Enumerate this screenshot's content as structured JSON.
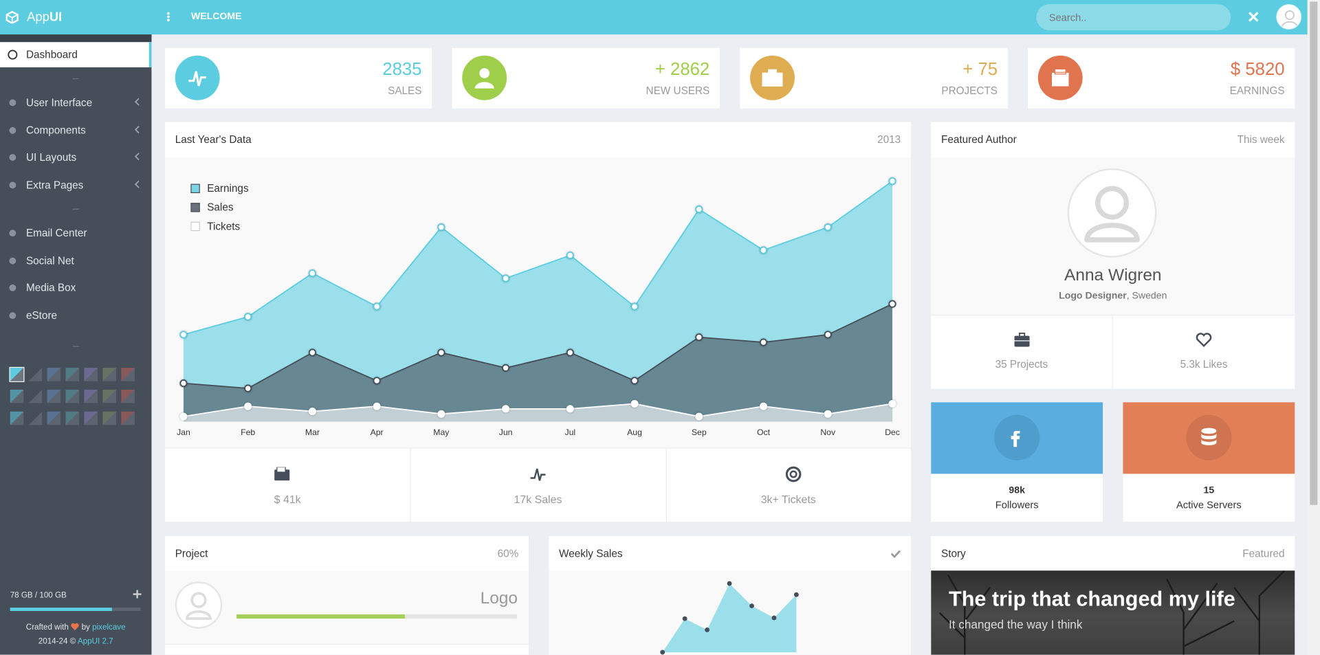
{
  "header": {
    "brand_light": "App",
    "brand_bold": "UI",
    "title": "WELCOME",
    "search": "Search.."
  },
  "sidebar": {
    "items": [
      "Dashboard",
      "User Interface",
      "Components",
      "UI Layouts",
      "Extra Pages",
      "Email Center",
      "Social Net",
      "Media Box",
      "eStore"
    ],
    "storage": {
      "value": 78,
      "label": "78 GB / 100 GB"
    },
    "credit": [
      "Crafted with",
      "by",
      "pixelcave"
    ],
    "copyright": [
      "2014-24 ©",
      "AppUI 2.7"
    ]
  },
  "stats": [
    {
      "value": "2835",
      "label": "SALES",
      "color": "#5ccde0"
    },
    {
      "value": "+ 2862",
      "label": "NEW USERS",
      "color": "#9fcf4a"
    },
    {
      "value": "+ 75",
      "label": "PROJECTS",
      "color": "#dfac52"
    },
    {
      "value": "$ 5820",
      "label": "EARNINGS",
      "color": "#e0744f"
    }
  ],
  "chart_data": [
    {
      "type": "area",
      "title": "Last Year's Data",
      "subtitle": "2013",
      "categories": [
        "Jan",
        "Feb",
        "Mar",
        "Apr",
        "May",
        "Jun",
        "Jul",
        "Aug",
        "Sep",
        "Oct",
        "Nov",
        "Dec"
      ],
      "series": [
        {
          "name": "Earnings",
          "color": "#5ccde0",
          "values": [
            34,
            41,
            58,
            45,
            76,
            56,
            65,
            45,
            83,
            67,
            76,
            94
          ]
        },
        {
          "name": "Sales",
          "color": "#454e59",
          "values": [
            15,
            13,
            27,
            16,
            27,
            21,
            27,
            16,
            33,
            31,
            34,
            46
          ]
        },
        {
          "name": "Tickets",
          "color": "#ffffff",
          "values": [
            2,
            6,
            4,
            6,
            3,
            5,
            5,
            7,
            2,
            6,
            3,
            7
          ]
        }
      ],
      "ylim": [
        0,
        100
      ],
      "legend": "top-left",
      "marker_fill": "#ffffff"
    },
    {
      "type": "area",
      "title": "Weekly Sales",
      "categories": [
        null,
        null,
        null,
        null,
        null,
        null,
        null
      ],
      "values": [
        0,
        42,
        28,
        86,
        58,
        43,
        72
      ],
      "color": "#5ccde0",
      "marker_color": "#454e59",
      "ylim": [
        0,
        100
      ]
    }
  ],
  "chart_summary": [
    "$ 41k",
    "17k Sales",
    "3k+ Tickets"
  ],
  "author": {
    "title": "Featured Author",
    "period": "This week",
    "name": "Anna Wigren",
    "role": "Logo Designer",
    "location": ", Sweden",
    "stats": [
      "35 Projects",
      "5.3k Likes"
    ]
  },
  "social": [
    {
      "count": "98k",
      "label": "Followers"
    },
    {
      "count": "15",
      "label": "Active Servers"
    }
  ],
  "project": {
    "title": "Project",
    "progress": {
      "value": 60,
      "label": "60%"
    },
    "task": "Logo"
  },
  "story": {
    "title": "Story",
    "tag": "Featured",
    "headline": "The trip that changed my life",
    "subline": "It changed the way I think"
  }
}
